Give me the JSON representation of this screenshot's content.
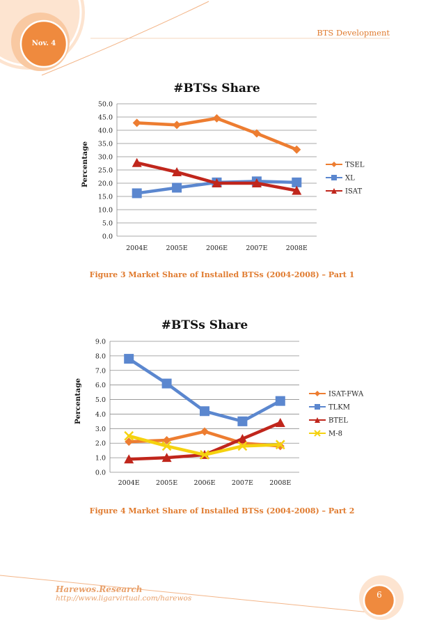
{
  "header": {
    "date": "Nov. 4",
    "title": "BTS Development"
  },
  "figures": [
    {
      "caption": "Figure 3 Market Share of Installed BTSs (2004-2008) – Part 1"
    },
    {
      "caption": "Figure 4 Market Share of Installed BTSs (2004-2008) – Part 2"
    }
  ],
  "footer": {
    "company": "Harewos.Research",
    "url": "http://www.ligarvirtual.com/harewos",
    "page_number": "6"
  },
  "colors": {
    "accent": "#e07b2f",
    "accent_light": "#f6c49c"
  },
  "chart_data": [
    {
      "type": "line",
      "title": "#BTSs  Share",
      "ylabel": "Percentage",
      "xlabel": "",
      "categories": [
        "2004E",
        "2005E",
        "2006E",
        "2007E",
        "2008E"
      ],
      "ylim": [
        0,
        50
      ],
      "ytick_step": 5,
      "ytick_decimals": 1,
      "grid": true,
      "legend_position": "right",
      "series": [
        {
          "name": "TSEL",
          "values": [
            42.8,
            42.0,
            44.5,
            38.8,
            32.7
          ],
          "color": "#ed7d31",
          "marker": "diamond"
        },
        {
          "name": "XL",
          "values": [
            16.2,
            18.3,
            20.3,
            20.7,
            20.3
          ],
          "color": "#5b87cf",
          "marker": "square"
        },
        {
          "name": "ISAT",
          "values": [
            27.7,
            24.2,
            20.0,
            20.0,
            17.2
          ],
          "color": "#c0261c",
          "marker": "triangle"
        }
      ]
    },
    {
      "type": "line",
      "title": "#BTSs Share",
      "ylabel": "Percentage",
      "xlabel": "",
      "categories": [
        "2004E",
        "2005E",
        "2006E",
        "2007E",
        "2008E"
      ],
      "ylim": [
        0,
        9
      ],
      "ytick_step": 1,
      "ytick_decimals": 1,
      "grid": true,
      "legend_position": "right",
      "series": [
        {
          "name": "ISAT-FWA",
          "values": [
            2.1,
            2.2,
            2.8,
            2.0,
            1.8
          ],
          "color": "#ed7d31",
          "marker": "diamond"
        },
        {
          "name": "TLKM",
          "values": [
            7.8,
            6.1,
            4.2,
            3.5,
            4.9
          ],
          "color": "#5b87cf",
          "marker": "square"
        },
        {
          "name": "BTEL",
          "values": [
            0.9,
            1.0,
            1.2,
            2.3,
            3.4
          ],
          "color": "#c0261c",
          "marker": "triangle"
        },
        {
          "name": "M-8",
          "values": [
            2.5,
            1.8,
            1.2,
            1.8,
            1.9
          ],
          "color": "#f5d20f",
          "marker": "x"
        }
      ]
    }
  ]
}
